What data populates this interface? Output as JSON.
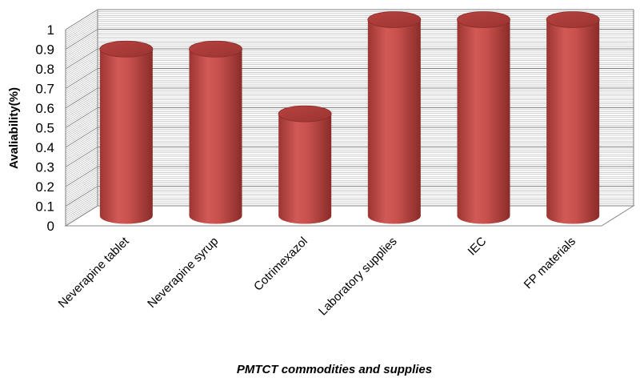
{
  "chart_data": {
    "type": "bar",
    "style": "3d-cylinder",
    "categories": [
      "Neverapine tablet",
      "Neverapine syrup",
      "Cotrimexazol",
      "Laboratory supplies",
      "IEC",
      "FP materials"
    ],
    "values": [
      0.85,
      0.85,
      0.52,
      1.0,
      1.0,
      1.0
    ],
    "ylabel": "Avaliability(%)",
    "xlabel": "PMTCT commodities and supplies",
    "ylim": [
      0,
      1
    ],
    "yticks": [
      "0",
      "0.1",
      "0.2",
      "0.3",
      "0.4",
      "0.5",
      "0.6",
      "0.7",
      "0.8",
      "0.9",
      "1"
    ],
    "grid": true,
    "colors": {
      "bar": "#c0504d",
      "bar_dark": "#8c2d2a",
      "bar_light": "#e07a76",
      "grid": "#999999"
    }
  }
}
